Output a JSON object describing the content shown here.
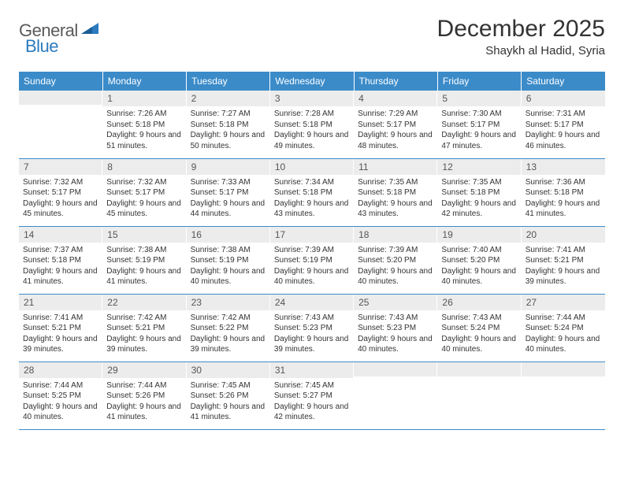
{
  "brand": {
    "part1": "General",
    "part2": "Blue"
  },
  "title": "December 2025",
  "location": "Shaykh al Hadid, Syria",
  "header_bg": "#3b8bc9",
  "daynum_bg": "#ececec",
  "border_color": "#3b8bc9",
  "font_family": "Arial, Helvetica, sans-serif",
  "weekdays": [
    "Sunday",
    "Monday",
    "Tuesday",
    "Wednesday",
    "Thursday",
    "Friday",
    "Saturday"
  ],
  "weeks": [
    [
      {
        "n": "",
        "sr": "",
        "ss": "",
        "dl": ""
      },
      {
        "n": "1",
        "sr": "7:26 AM",
        "ss": "5:18 PM",
        "dl": "9 hours and 51 minutes."
      },
      {
        "n": "2",
        "sr": "7:27 AM",
        "ss": "5:18 PM",
        "dl": "9 hours and 50 minutes."
      },
      {
        "n": "3",
        "sr": "7:28 AM",
        "ss": "5:18 PM",
        "dl": "9 hours and 49 minutes."
      },
      {
        "n": "4",
        "sr": "7:29 AM",
        "ss": "5:17 PM",
        "dl": "9 hours and 48 minutes."
      },
      {
        "n": "5",
        "sr": "7:30 AM",
        "ss": "5:17 PM",
        "dl": "9 hours and 47 minutes."
      },
      {
        "n": "6",
        "sr": "7:31 AM",
        "ss": "5:17 PM",
        "dl": "9 hours and 46 minutes."
      }
    ],
    [
      {
        "n": "7",
        "sr": "7:32 AM",
        "ss": "5:17 PM",
        "dl": "9 hours and 45 minutes."
      },
      {
        "n": "8",
        "sr": "7:32 AM",
        "ss": "5:17 PM",
        "dl": "9 hours and 45 minutes."
      },
      {
        "n": "9",
        "sr": "7:33 AM",
        "ss": "5:17 PM",
        "dl": "9 hours and 44 minutes."
      },
      {
        "n": "10",
        "sr": "7:34 AM",
        "ss": "5:18 PM",
        "dl": "9 hours and 43 minutes."
      },
      {
        "n": "11",
        "sr": "7:35 AM",
        "ss": "5:18 PM",
        "dl": "9 hours and 43 minutes."
      },
      {
        "n": "12",
        "sr": "7:35 AM",
        "ss": "5:18 PM",
        "dl": "9 hours and 42 minutes."
      },
      {
        "n": "13",
        "sr": "7:36 AM",
        "ss": "5:18 PM",
        "dl": "9 hours and 41 minutes."
      }
    ],
    [
      {
        "n": "14",
        "sr": "7:37 AM",
        "ss": "5:18 PM",
        "dl": "9 hours and 41 minutes."
      },
      {
        "n": "15",
        "sr": "7:38 AM",
        "ss": "5:19 PM",
        "dl": "9 hours and 41 minutes."
      },
      {
        "n": "16",
        "sr": "7:38 AM",
        "ss": "5:19 PM",
        "dl": "9 hours and 40 minutes."
      },
      {
        "n": "17",
        "sr": "7:39 AM",
        "ss": "5:19 PM",
        "dl": "9 hours and 40 minutes."
      },
      {
        "n": "18",
        "sr": "7:39 AM",
        "ss": "5:20 PM",
        "dl": "9 hours and 40 minutes."
      },
      {
        "n": "19",
        "sr": "7:40 AM",
        "ss": "5:20 PM",
        "dl": "9 hours and 40 minutes."
      },
      {
        "n": "20",
        "sr": "7:41 AM",
        "ss": "5:21 PM",
        "dl": "9 hours and 39 minutes."
      }
    ],
    [
      {
        "n": "21",
        "sr": "7:41 AM",
        "ss": "5:21 PM",
        "dl": "9 hours and 39 minutes."
      },
      {
        "n": "22",
        "sr": "7:42 AM",
        "ss": "5:21 PM",
        "dl": "9 hours and 39 minutes."
      },
      {
        "n": "23",
        "sr": "7:42 AM",
        "ss": "5:22 PM",
        "dl": "9 hours and 39 minutes."
      },
      {
        "n": "24",
        "sr": "7:43 AM",
        "ss": "5:23 PM",
        "dl": "9 hours and 39 minutes."
      },
      {
        "n": "25",
        "sr": "7:43 AM",
        "ss": "5:23 PM",
        "dl": "9 hours and 40 minutes."
      },
      {
        "n": "26",
        "sr": "7:43 AM",
        "ss": "5:24 PM",
        "dl": "9 hours and 40 minutes."
      },
      {
        "n": "27",
        "sr": "7:44 AM",
        "ss": "5:24 PM",
        "dl": "9 hours and 40 minutes."
      }
    ],
    [
      {
        "n": "28",
        "sr": "7:44 AM",
        "ss": "5:25 PM",
        "dl": "9 hours and 40 minutes."
      },
      {
        "n": "29",
        "sr": "7:44 AM",
        "ss": "5:26 PM",
        "dl": "9 hours and 41 minutes."
      },
      {
        "n": "30",
        "sr": "7:45 AM",
        "ss": "5:26 PM",
        "dl": "9 hours and 41 minutes."
      },
      {
        "n": "31",
        "sr": "7:45 AM",
        "ss": "5:27 PM",
        "dl": "9 hours and 42 minutes."
      },
      {
        "n": "",
        "sr": "",
        "ss": "",
        "dl": ""
      },
      {
        "n": "",
        "sr": "",
        "ss": "",
        "dl": ""
      },
      {
        "n": "",
        "sr": "",
        "ss": "",
        "dl": ""
      }
    ]
  ],
  "labels": {
    "sunrise": "Sunrise:",
    "sunset": "Sunset:",
    "daylight": "Daylight:"
  }
}
